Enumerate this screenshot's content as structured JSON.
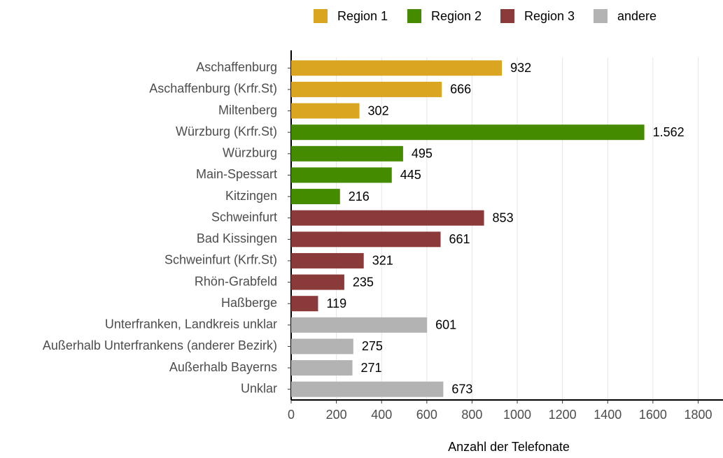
{
  "chart_data": {
    "type": "bar",
    "orientation": "horizontal",
    "x_label": "Anzahl der Telefonate",
    "categories": [
      "Aschaffenburg",
      "Aschaffenburg (Krfr.St)",
      "Miltenberg",
      "Würzburg (Krfr.St)",
      "Würzburg",
      "Main-Spessart",
      "Kitzingen",
      "Schweinfurt",
      "Bad Kissingen",
      "Schweinfurt (Krfr.St)",
      "Rhön-Grabfeld",
      "Haßberge",
      "Unterfranken, Landkreis unklar",
      "Außerhalb Unterfrankens (anderer Bezirk)",
      "Außerhalb Bayerns",
      "Unklar"
    ],
    "series": [
      {
        "name": "Region 1",
        "color": "#daa520",
        "values": [
          932,
          666,
          302,
          null,
          null,
          null,
          null,
          null,
          null,
          null,
          null,
          null,
          null,
          null,
          null,
          null
        ]
      },
      {
        "name": "Region 2",
        "color": "#458b00",
        "values": [
          null,
          null,
          null,
          1562,
          495,
          445,
          216,
          null,
          null,
          null,
          null,
          null,
          null,
          null,
          null,
          null
        ],
        "value_labels": [
          null,
          null,
          null,
          "1.562",
          "495",
          "445",
          "216",
          null,
          null,
          null,
          null,
          null,
          null,
          null,
          null,
          null
        ]
      },
      {
        "name": "Region 3",
        "color": "#8b3a3a",
        "values": [
          null,
          null,
          null,
          null,
          null,
          null,
          null,
          853,
          661,
          321,
          235,
          119,
          null,
          null,
          null,
          null
        ]
      },
      {
        "name": "andere",
        "color": "#b3b3b3",
        "values": [
          null,
          null,
          null,
          null,
          null,
          null,
          null,
          null,
          null,
          null,
          null,
          null,
          601,
          275,
          271,
          673
        ]
      }
    ],
    "xlim": [
      0,
      1910
    ],
    "xticks": [
      0,
      200,
      400,
      600,
      800,
      1000,
      1200,
      1400,
      1600,
      1800
    ],
    "grid": true,
    "legend": "top"
  }
}
